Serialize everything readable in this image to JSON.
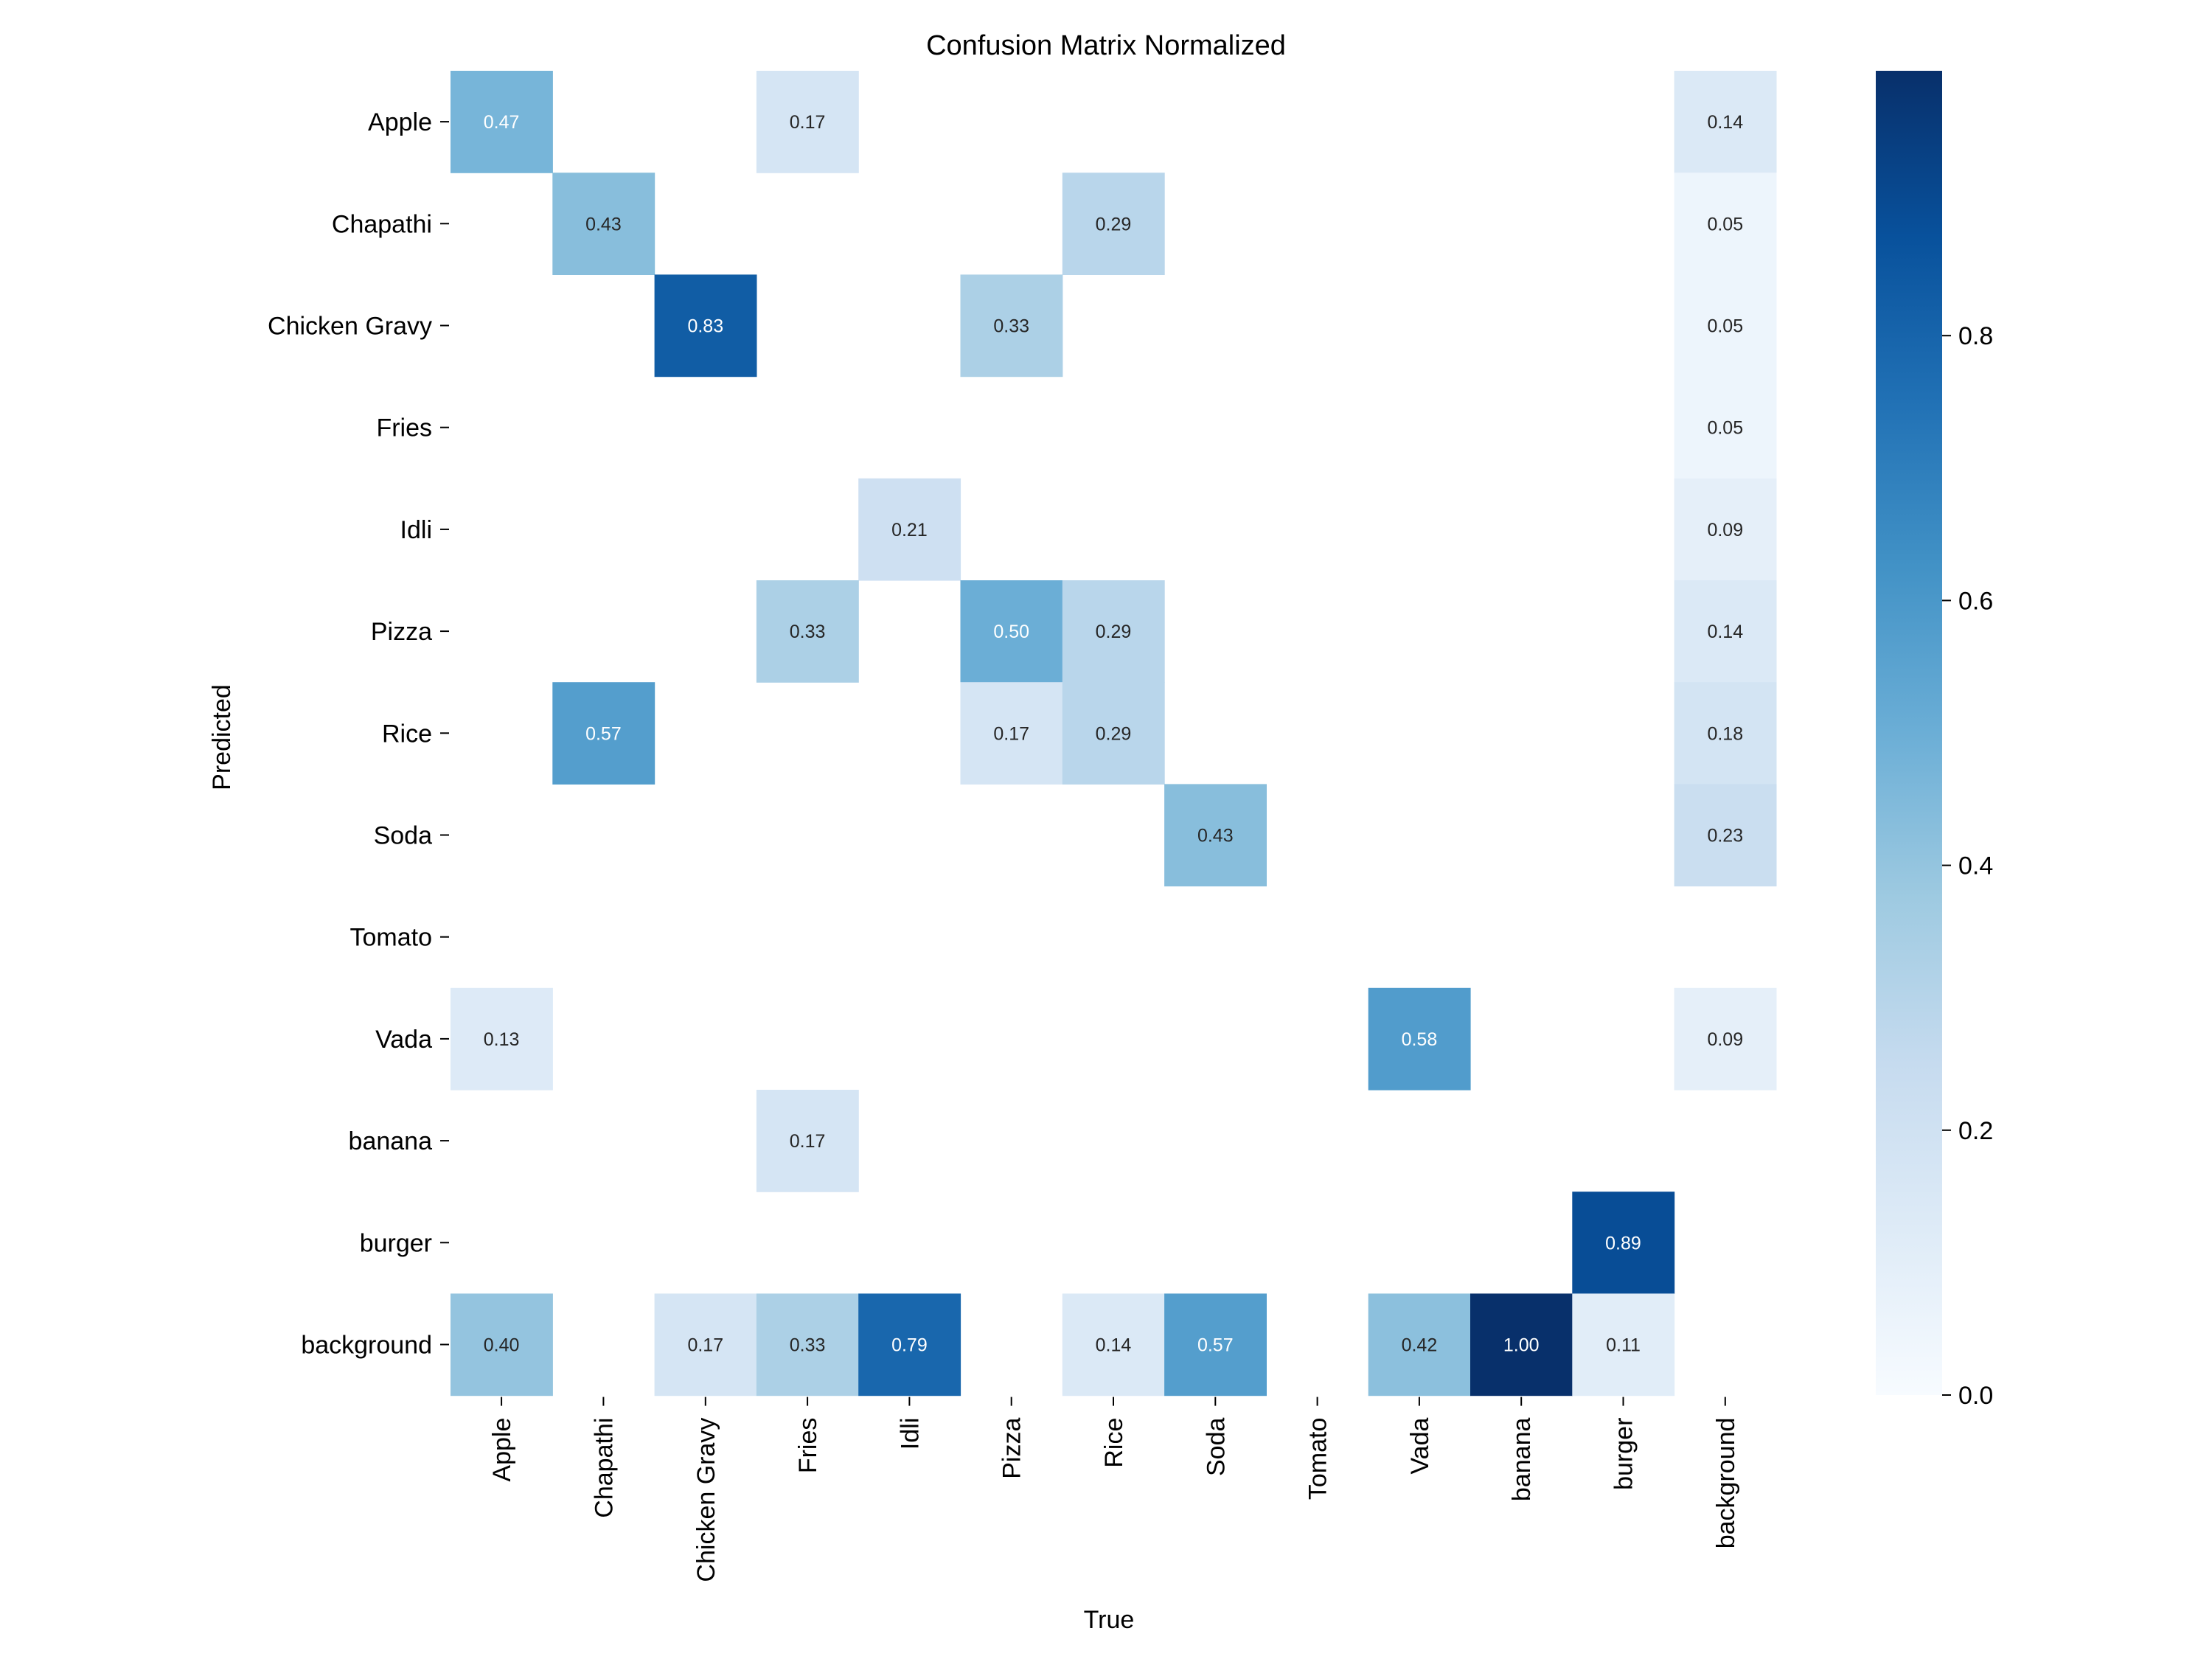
{
  "chart_data": {
    "type": "heatmap",
    "title": "Confusion Matrix Normalized",
    "xlabel": "True",
    "ylabel": "Predicted",
    "x_categories": [
      "Apple",
      "Chapathi",
      "Chicken Gravy",
      "Fries",
      "Idli",
      "Pizza",
      "Rice",
      "Soda",
      "Tomato",
      "Vada",
      "banana",
      "burger",
      "background"
    ],
    "y_categories": [
      "Apple",
      "Chapathi",
      "Chicken Gravy",
      "Fries",
      "Idli",
      "Pizza",
      "Rice",
      "Soda",
      "Tomato",
      "Vada",
      "banana",
      "burger",
      "background"
    ],
    "values": [
      [
        0.47,
        null,
        null,
        0.17,
        null,
        null,
        null,
        null,
        null,
        null,
        null,
        null,
        0.14
      ],
      [
        null,
        0.43,
        null,
        null,
        null,
        null,
        0.29,
        null,
        null,
        null,
        null,
        null,
        0.05
      ],
      [
        null,
        null,
        0.83,
        null,
        null,
        0.33,
        null,
        null,
        null,
        null,
        null,
        null,
        0.05
      ],
      [
        null,
        null,
        null,
        null,
        null,
        null,
        null,
        null,
        null,
        null,
        null,
        null,
        0.05
      ],
      [
        null,
        null,
        null,
        null,
        0.21,
        null,
        null,
        null,
        null,
        null,
        null,
        null,
        0.09
      ],
      [
        null,
        null,
        null,
        0.33,
        null,
        0.5,
        0.29,
        null,
        null,
        null,
        null,
        null,
        0.14
      ],
      [
        null,
        0.57,
        null,
        null,
        null,
        0.17,
        0.29,
        null,
        null,
        null,
        null,
        null,
        0.18
      ],
      [
        null,
        null,
        null,
        null,
        null,
        null,
        null,
        0.43,
        null,
        null,
        null,
        null,
        0.23
      ],
      [
        null,
        null,
        null,
        null,
        null,
        null,
        null,
        null,
        null,
        null,
        null,
        null,
        null
      ],
      [
        0.13,
        null,
        null,
        null,
        null,
        null,
        null,
        null,
        null,
        0.58,
        null,
        null,
        0.09
      ],
      [
        null,
        null,
        null,
        0.17,
        null,
        null,
        null,
        null,
        null,
        null,
        null,
        null,
        null
      ],
      [
        null,
        null,
        null,
        null,
        null,
        null,
        null,
        null,
        null,
        null,
        null,
        0.89,
        null
      ],
      [
        0.4,
        null,
        0.17,
        0.33,
        0.79,
        null,
        0.14,
        0.57,
        null,
        0.42,
        1.0,
        0.11,
        null
      ]
    ],
    "colormap": "Blues",
    "colorbar": {
      "range": [
        0,
        1
      ],
      "ticks": [
        "0.0",
        "0.2",
        "0.4",
        "0.6",
        "0.8"
      ]
    },
    "grid": false
  }
}
